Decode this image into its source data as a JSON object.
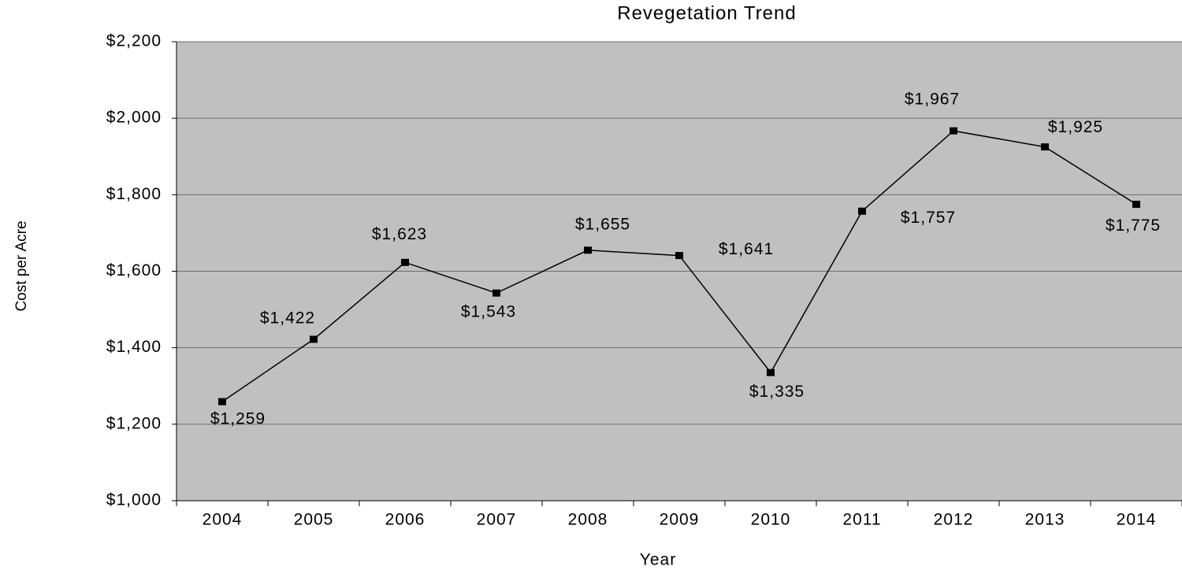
{
  "chart_data": {
    "type": "line",
    "title": "Revegetation Trend",
    "x_label": "Year",
    "y_label": "Cost per Acre",
    "categories": [
      "2004",
      "2005",
      "2006",
      "2007",
      "2008",
      "2009",
      "2010",
      "2011",
      "2012",
      "2013",
      "2014"
    ],
    "series": [
      {
        "name": "Cost per Acre",
        "color": "#000000",
        "values": [
          1259,
          1422,
          1623,
          1543,
          1655,
          1641,
          1335,
          1757,
          1967,
          1925,
          1775
        ],
        "value_labels": [
          "$1,259",
          "$1,422",
          "$1,623",
          "$1,543",
          "$1,655",
          "$1,641",
          "$1,335",
          "$1,757",
          "$1,967",
          "$1,925",
          "$1,775"
        ]
      }
    ],
    "ylim": [
      1000,
      2200
    ],
    "yticks": [
      {
        "value": 1000,
        "label": "$1,000"
      },
      {
        "value": 1200,
        "label": "$1,200"
      },
      {
        "value": 1400,
        "label": "$1,400"
      },
      {
        "value": 1600,
        "label": "$1,600"
      },
      {
        "value": 1800,
        "label": "$1,800"
      },
      {
        "value": 2000,
        "label": "$2,000"
      },
      {
        "value": 2200,
        "label": "$2,200"
      }
    ],
    "grid": true,
    "plot_background": "#c0c0c0"
  }
}
